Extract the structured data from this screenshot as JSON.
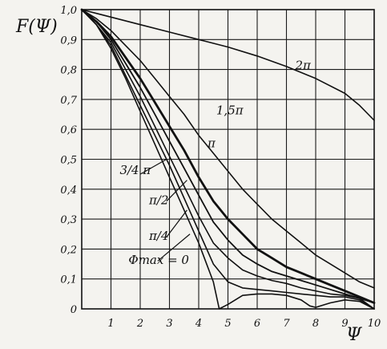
{
  "chart_data": {
    "type": "line",
    "ylabel": "F(Ψ)",
    "xlabel": "Ψ",
    "xlim": [
      0,
      10
    ],
    "ylim": [
      0,
      1.0
    ],
    "grid": true,
    "x_ticks": [
      "1",
      "2",
      "3",
      "4",
      "5",
      "6",
      "7",
      "8",
      "9",
      "10"
    ],
    "y_ticks": [
      "0",
      "0,1",
      "0,2",
      "0,3",
      "0,4",
      "0,5",
      "0,6",
      "0,7",
      "0,8",
      "0,9",
      "1,0"
    ],
    "series_parameter_label": "Φmax = 0",
    "series": [
      {
        "name": "Φmax = 0",
        "points": [
          [
            0,
            1.0
          ],
          [
            0.5,
            0.95
          ],
          [
            1,
            0.87
          ],
          [
            1.5,
            0.77
          ],
          [
            2,
            0.66
          ],
          [
            2.5,
            0.55
          ],
          [
            3,
            0.44
          ],
          [
            3.5,
            0.33
          ],
          [
            4,
            0.22
          ],
          [
            4.5,
            0.09
          ],
          [
            4.7,
            0.0
          ],
          [
            5,
            0.015
          ],
          [
            5.5,
            0.045
          ],
          [
            6,
            0.05
          ],
          [
            6.5,
            0.05
          ],
          [
            7,
            0.045
          ],
          [
            7.5,
            0.03
          ],
          [
            7.8,
            0.01
          ],
          [
            8,
            0.005
          ],
          [
            8.5,
            0.02
          ],
          [
            9,
            0.03
          ],
          [
            9.5,
            0.025
          ],
          [
            10,
            0.0
          ]
        ]
      },
      {
        "name": "π/4",
        "points": [
          [
            0,
            1.0
          ],
          [
            0.5,
            0.95
          ],
          [
            1,
            0.88
          ],
          [
            1.5,
            0.78
          ],
          [
            2,
            0.68
          ],
          [
            2.5,
            0.58
          ],
          [
            3,
            0.48
          ],
          [
            3.5,
            0.37
          ],
          [
            4,
            0.26
          ],
          [
            4.5,
            0.15
          ],
          [
            5,
            0.09
          ],
          [
            5.5,
            0.07
          ],
          [
            6,
            0.065
          ],
          [
            6.5,
            0.06
          ],
          [
            7,
            0.055
          ],
          [
            7.5,
            0.05
          ],
          [
            8,
            0.045
          ],
          [
            8.5,
            0.04
          ],
          [
            9,
            0.04
          ],
          [
            9.5,
            0.03
          ],
          [
            10,
            0.0
          ]
        ]
      },
      {
        "name": "π/2",
        "points": [
          [
            0,
            1.0
          ],
          [
            0.5,
            0.95
          ],
          [
            1,
            0.89
          ],
          [
            1.5,
            0.8
          ],
          [
            2,
            0.71
          ],
          [
            2.5,
            0.61
          ],
          [
            3,
            0.51
          ],
          [
            3.5,
            0.41
          ],
          [
            4,
            0.31
          ],
          [
            4.5,
            0.22
          ],
          [
            5,
            0.17
          ],
          [
            5.5,
            0.13
          ],
          [
            6,
            0.11
          ],
          [
            6.5,
            0.095
          ],
          [
            7,
            0.085
          ],
          [
            7.5,
            0.07
          ],
          [
            8,
            0.06
          ],
          [
            8.5,
            0.05
          ],
          [
            9,
            0.045
          ],
          [
            9.5,
            0.035
          ],
          [
            10,
            0.0
          ]
        ]
      },
      {
        "name": "3/4 π",
        "points": [
          [
            0,
            1.0
          ],
          [
            0.5,
            0.96
          ],
          [
            1,
            0.9
          ],
          [
            1.5,
            0.82
          ],
          [
            2,
            0.74
          ],
          [
            2.5,
            0.65
          ],
          [
            3,
            0.56
          ],
          [
            3.5,
            0.47
          ],
          [
            4,
            0.38
          ],
          [
            4.5,
            0.29
          ],
          [
            5,
            0.23
          ],
          [
            5.5,
            0.18
          ],
          [
            6,
            0.15
          ],
          [
            6.5,
            0.125
          ],
          [
            7,
            0.11
          ],
          [
            7.5,
            0.095
          ],
          [
            8,
            0.08
          ],
          [
            8.5,
            0.065
          ],
          [
            9,
            0.05
          ],
          [
            9.5,
            0.035
          ],
          [
            10,
            0.02
          ]
        ]
      },
      {
        "name": "π",
        "points": [
          [
            0,
            1.0
          ],
          [
            0.5,
            0.96
          ],
          [
            1,
            0.91
          ],
          [
            1.5,
            0.84
          ],
          [
            2,
            0.77
          ],
          [
            2.5,
            0.69
          ],
          [
            3,
            0.61
          ],
          [
            3.5,
            0.53
          ],
          [
            4,
            0.44
          ],
          [
            4.5,
            0.36
          ],
          [
            5,
            0.3
          ],
          [
            5.5,
            0.25
          ],
          [
            6,
            0.2
          ],
          [
            6.5,
            0.17
          ],
          [
            7,
            0.14
          ],
          [
            7.5,
            0.12
          ],
          [
            8,
            0.1
          ],
          [
            8.5,
            0.08
          ],
          [
            9,
            0.06
          ],
          [
            9.5,
            0.04
          ],
          [
            10,
            0.02
          ]
        ]
      },
      {
        "name": "1,5π",
        "points": [
          [
            0,
            1.0
          ],
          [
            0.5,
            0.97
          ],
          [
            1,
            0.93
          ],
          [
            1.5,
            0.88
          ],
          [
            2,
            0.83
          ],
          [
            2.5,
            0.77
          ],
          [
            3,
            0.71
          ],
          [
            3.5,
            0.65
          ],
          [
            4,
            0.58
          ],
          [
            4.5,
            0.52
          ],
          [
            5,
            0.46
          ],
          [
            5.5,
            0.4
          ],
          [
            6,
            0.35
          ],
          [
            6.5,
            0.3
          ],
          [
            7,
            0.26
          ],
          [
            7.5,
            0.22
          ],
          [
            8,
            0.18
          ],
          [
            8.5,
            0.15
          ],
          [
            9,
            0.12
          ],
          [
            9.5,
            0.09
          ],
          [
            10,
            0.07
          ]
        ]
      },
      {
        "name": "2π",
        "points": [
          [
            0,
            1.0
          ],
          [
            1,
            0.975
          ],
          [
            2,
            0.95
          ],
          [
            3,
            0.925
          ],
          [
            4,
            0.9
          ],
          [
            5,
            0.875
          ],
          [
            6,
            0.845
          ],
          [
            7,
            0.81
          ],
          [
            8,
            0.77
          ],
          [
            9,
            0.72
          ],
          [
            9.5,
            0.68
          ],
          [
            10,
            0.63
          ]
        ]
      }
    ],
    "annotations": [
      {
        "text": "2π",
        "x": 7.3,
        "y": 0.8
      },
      {
        "text": "1,5π",
        "x": 4.6,
        "y": 0.65
      },
      {
        "text": "π",
        "x": 4.3,
        "y": 0.54
      },
      {
        "text": "3/4 π",
        "x": 1.3,
        "y": 0.45
      },
      {
        "text": "π/2",
        "x": 2.3,
        "y": 0.35
      },
      {
        "text": "π/4",
        "x": 2.3,
        "y": 0.23
      },
      {
        "text": "Φmax = 0",
        "x": 1.6,
        "y": 0.15
      }
    ]
  }
}
